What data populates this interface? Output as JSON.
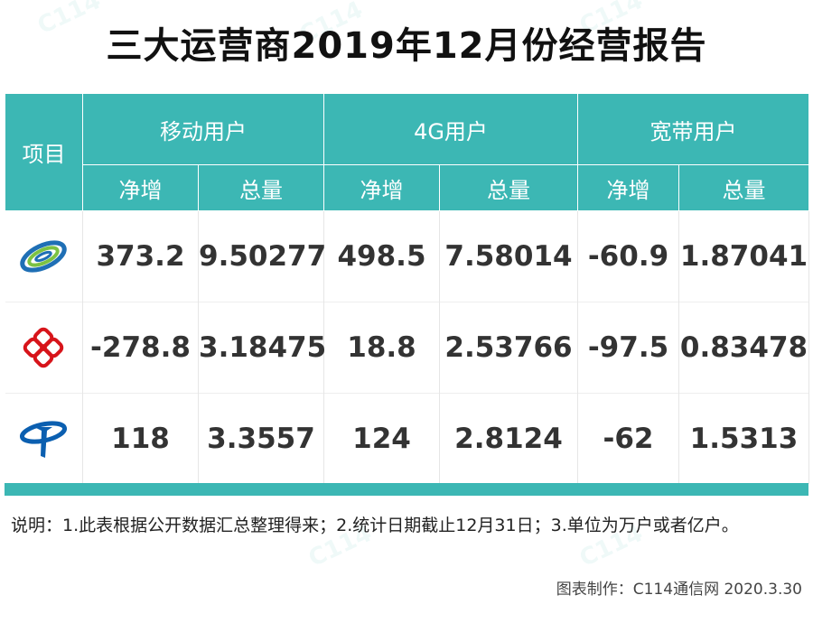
{
  "title": "三大运营商2019年12月份经营报告",
  "table": {
    "item_header": "项目",
    "groups": [
      "移动用户",
      "4G用户",
      "宽带用户"
    ],
    "subheaders": [
      "净增",
      "总量",
      "净增",
      "总量",
      "净增",
      "总量"
    ],
    "rows": [
      {
        "logo_icon": "china-mobile-logo-icon",
        "values": [
          "373.2",
          "9.50277",
          "498.5",
          "7.58014",
          "-60.9",
          "1.87041"
        ]
      },
      {
        "logo_icon": "china-unicom-logo-icon",
        "values": [
          "-278.8",
          "3.18475",
          "18.8",
          "2.53766",
          "-97.5",
          "0.83478"
        ]
      },
      {
        "logo_icon": "china-telecom-logo-icon",
        "values": [
          "118",
          "3.3557",
          "124",
          "2.8124",
          "-62",
          "1.5313"
        ]
      }
    ]
  },
  "colors": {
    "header_bg": "#3cb7b4",
    "mobile_logo": "#1f6fb5",
    "mobile_logo_green": "#7cc243",
    "unicom_logo": "#d7141a",
    "telecom_logo": "#0b5fb0"
  },
  "note": "说明：1.此表根据公开数据汇总整理得来；2.统计日期截止12月31日；3.单位为万户或者亿户。",
  "credit": "图表制作：C114通信网 2020.3.30"
}
